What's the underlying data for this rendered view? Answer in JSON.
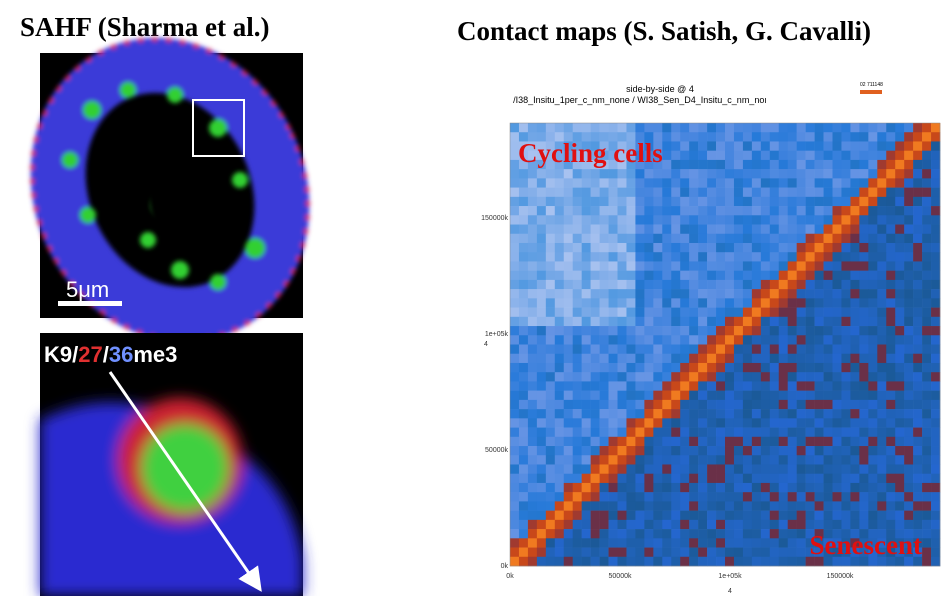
{
  "left_panel": {
    "title": "SAHF (Sharma et al.)",
    "scale_bar": "5μm",
    "stain_label": [
      "K9",
      "/",
      "27",
      "/",
      "36",
      "me3"
    ]
  },
  "right_panel": {
    "title": "Contact maps (S. Satish, G. Cavalli)",
    "plot_title": "side-by-side @ 4",
    "plot_subtitle": "/I38_Insitu_1per_c_nm_none / WI38_Sen_D4_Insitu_c_nm_noı",
    "colorbar_label": "02 711148",
    "y_ticks": [
      "150000k",
      "1e+05k",
      "50000k",
      "0k"
    ],
    "y_axis_label": "4",
    "x_ticks": [
      "0k",
      "50000k",
      "1e+05k",
      "150000k"
    ],
    "x_axis_label": "4",
    "annotations": [
      "Cycling cells",
      "Senescent"
    ]
  }
}
